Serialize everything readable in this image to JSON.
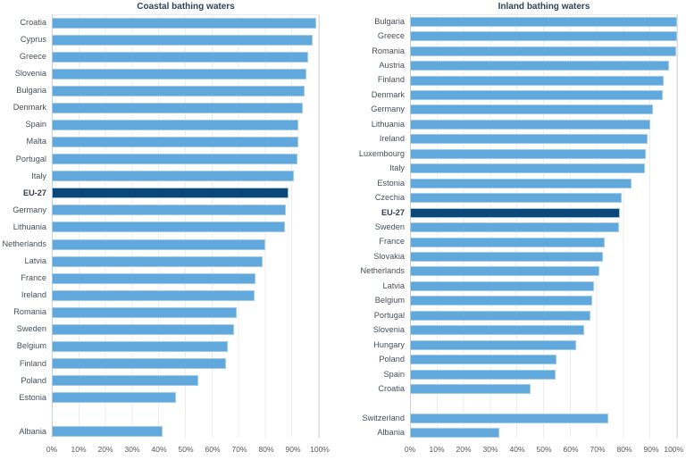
{
  "colors": {
    "bar": "#61a9dc",
    "bar_border": "#a2cbe9",
    "highlight_bar": "#0b4879",
    "gridline": "#ededed",
    "axis_line": "#cfcfcf",
    "title_text": "#2f4459",
    "label_text": "#44505c",
    "tick_text": "#58585a"
  },
  "axis": {
    "ticks": [
      "0%",
      "10%",
      "20%",
      "30%",
      "40%",
      "50%",
      "60%",
      "70%",
      "80%",
      "90%",
      "100%"
    ],
    "min": 0,
    "max": 100
  },
  "chart_data": [
    {
      "type": "bar",
      "orientation": "horizontal",
      "title": "Coastal bathing waters",
      "xlabel": "",
      "ylabel": "",
      "xlim": [
        0,
        100
      ],
      "grid": true,
      "unit": "%",
      "highlight_category": "EU-27",
      "gap_before_category": "Albania",
      "categories": [
        "Croatia",
        "Cyprus",
        "Greece",
        "Slovenia",
        "Bulgaria",
        "Denmark",
        "Spain",
        "Malta",
        "Portugal",
        "Italy",
        "EU-27",
        "Germany",
        "Lithuania",
        "Netherlands",
        "Latvia",
        "France",
        "Ireland",
        "Romania",
        "Sweden",
        "Belgium",
        "Finland",
        "Poland",
        "Estonia",
        "Albania"
      ],
      "values": [
        98.8,
        97.3,
        95.7,
        95.0,
        94.3,
        93.6,
        92.1,
        91.9,
        91.6,
        90.4,
        88.4,
        87.2,
        86.9,
        79.8,
        78.5,
        76.1,
        75.8,
        69.1,
        67.9,
        65.6,
        64.9,
        54.7,
        46.3,
        41.3
      ]
    },
    {
      "type": "bar",
      "orientation": "horizontal",
      "title": "Inland bathing waters",
      "xlabel": "",
      "ylabel": "",
      "xlim": [
        0,
        100
      ],
      "grid": true,
      "unit": "%",
      "highlight_category": "EU-27",
      "gap_before_category": "Switzerland",
      "categories": [
        "Bulgaria",
        "Greece",
        "Romania",
        "Austria",
        "Finland",
        "Denmark",
        "Germany",
        "Lithuania",
        "Ireland",
        "Luxembourg",
        "Italy",
        "Estonia",
        "Czechia",
        "EU-27",
        "Sweden",
        "France",
        "Slovakia",
        "Netherlands",
        "Latvia",
        "Belgium",
        "Portugal",
        "Slovenia",
        "Hungary",
        "Poland",
        "Spain",
        "Croatia",
        "Switzerland",
        "Albania"
      ],
      "values": [
        99.7,
        99.6,
        99.3,
        96.8,
        94.7,
        94.3,
        90.7,
        89.6,
        88.8,
        88.1,
        87.7,
        82.5,
        78.9,
        78.4,
        78.0,
        72.5,
        72.0,
        70.7,
        68.7,
        68.0,
        67.2,
        64.9,
        62.0,
        54.5,
        54.2,
        44.9,
        73.9,
        33.2
      ]
    }
  ]
}
